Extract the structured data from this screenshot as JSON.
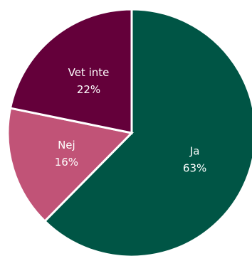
{
  "chart_data": {
    "type": "pie",
    "title": "",
    "start_angle_deg": 0,
    "direction": "clockwise",
    "slices": [
      {
        "label": "Ja",
        "value": 63,
        "value_label": "63%",
        "color": "#005545"
      },
      {
        "label": "Nej",
        "value": 16,
        "value_label": "16%",
        "color": "#c15377"
      },
      {
        "label": "Vet inte",
        "value": 22,
        "value_label": "22%",
        "color": "#64003a"
      }
    ]
  }
}
